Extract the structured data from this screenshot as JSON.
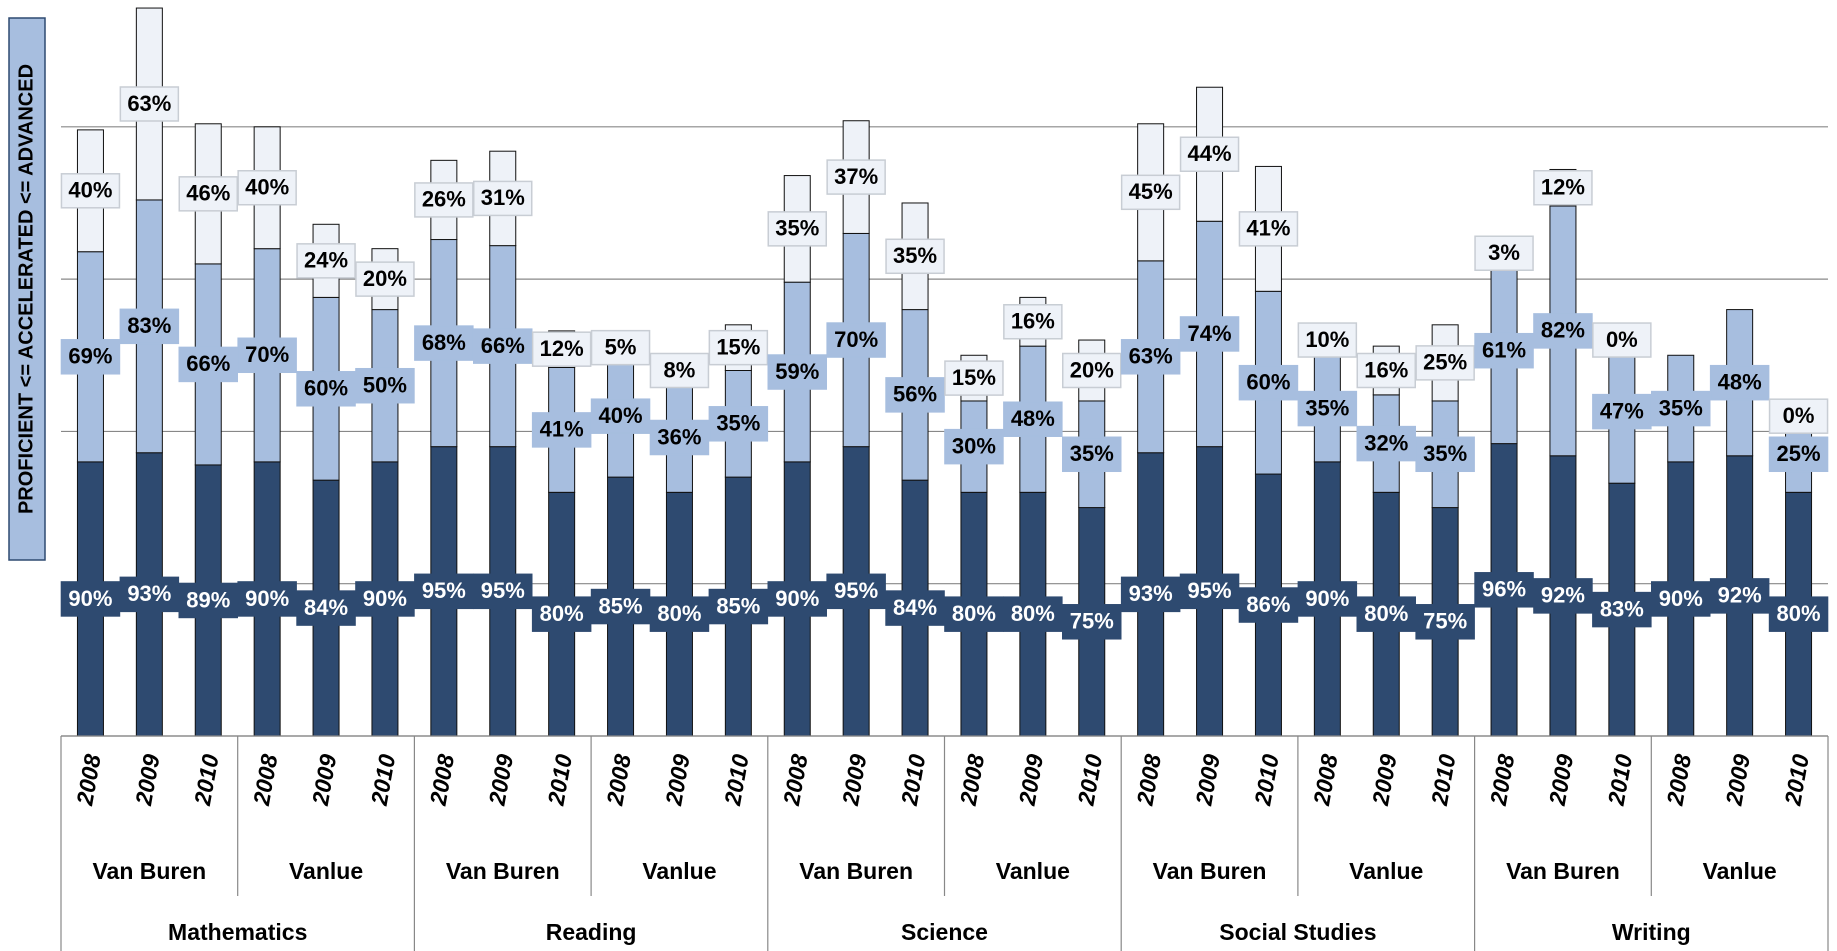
{
  "chart_data": {
    "type": "bar",
    "stacked": true,
    "ylabel": "PROFICIENT <= ACCELERATED <= ADVANCED",
    "categories": [
      "2008",
      "2009",
      "2010",
      "2008",
      "2009",
      "2010",
      "2008",
      "2009",
      "2010",
      "2008",
      "2009",
      "2010",
      "2008",
      "2009",
      "2010",
      "2008",
      "2009",
      "2010",
      "2008",
      "2009",
      "2010",
      "2008",
      "2009",
      "2010",
      "2008",
      "2009",
      "2010",
      "2008",
      "2009",
      "2010"
    ],
    "schools": [
      "Van Buren",
      "Vanlue",
      "Van Buren",
      "Vanlue",
      "Van Buren",
      "Vanlue",
      "Van Buren",
      "Vanlue",
      "Van Buren",
      "Vanlue"
    ],
    "subjects": [
      "Mathematics",
      "Reading",
      "Science",
      "Social Studies",
      "Writing"
    ],
    "ylim": [
      0,
      240
    ],
    "yticks": [
      0,
      50,
      100,
      150,
      200
    ],
    "grid": true,
    "series": [
      {
        "color": "#2e4a70",
        "label_color": "#ffffff",
        "values": [
          90,
          93,
          89,
          90,
          84,
          90,
          95,
          95,
          80,
          85,
          80,
          85,
          90,
          95,
          84,
          80,
          80,
          75,
          93,
          95,
          86,
          90,
          80,
          75,
          96,
          92,
          83,
          90,
          92,
          80
        ],
        "value_labels": [
          "90%",
          "93%",
          "89%",
          "90%",
          "84%",
          "90%",
          "95%",
          "95%",
          "80%",
          "85%",
          "80%",
          "85%",
          "90%",
          "95%",
          "84%",
          "80%",
          "80%",
          "75%",
          "93%",
          "95%",
          "86%",
          "90%",
          "80%",
          "75%",
          "96%",
          "92%",
          "83%",
          "90%",
          "92%",
          "80%"
        ]
      },
      {
        "color": "#a7bedf",
        "label_color": "#000000",
        "values": [
          69,
          83,
          66,
          70,
          60,
          50,
          68,
          66,
          41,
          40,
          36,
          35,
          59,
          70,
          56,
          30,
          48,
          35,
          63,
          74,
          60,
          35,
          32,
          35,
          61,
          82,
          47,
          35,
          48,
          25
        ],
        "value_labels": [
          "69%",
          "83%",
          "66%",
          "70%",
          "60%",
          "50%",
          "68%",
          "66%",
          "41%",
          "40%",
          "36%",
          "35%",
          "59%",
          "70%",
          "56%",
          "30%",
          "48%",
          "35%",
          "63%",
          "74%",
          "60%",
          "35%",
          "32%",
          "35%",
          "61%",
          "82%",
          "47%",
          "35%",
          "48%",
          "25%"
        ]
      },
      {
        "color": "#eef2f8",
        "label_color": "#000000",
        "values": [
          40,
          63,
          46,
          40,
          24,
          20,
          26,
          31,
          12,
          5,
          8,
          15,
          35,
          37,
          35,
          15,
          16,
          20,
          45,
          44,
          41,
          10,
          16,
          25,
          3,
          12,
          0,
          null,
          null,
          0
        ],
        "value_labels": [
          "40%",
          "63%",
          "46%",
          "40%",
          "24%",
          "20%",
          "26%",
          "31%",
          "12%",
          "5%",
          "8%",
          "15%",
          "35%",
          "37%",
          "35%",
          "15%",
          "16%",
          "20%",
          "45%",
          "44%",
          "41%",
          "10%",
          "16%",
          "25%",
          "3%",
          "12%",
          "0%",
          null,
          null,
          "0%"
        ]
      }
    ]
  }
}
